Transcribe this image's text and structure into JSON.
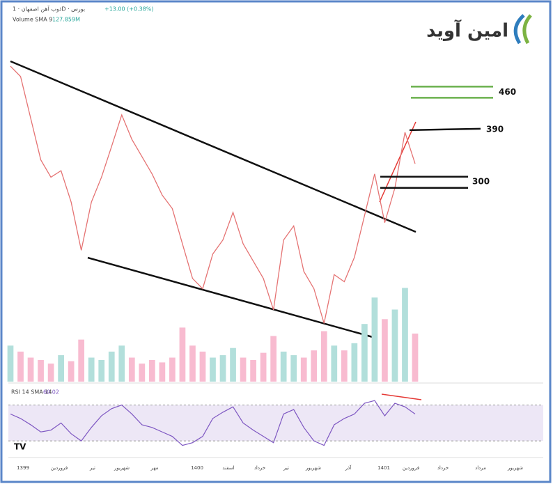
{
  "chart_data": {
    "type": "line",
    "header": {
      "symbol": "ذوب آهن اصفهان · 1D · بورس",
      "change": "+13.00 (+0.38%)"
    },
    "logo": "امین آوید",
    "price": {
      "name": "ذوب آهن اصفهان",
      "color": "#e57373",
      "ylim": [
        0,
        566
      ],
      "values": [
        508,
        489,
        412,
        335,
        303,
        315,
        257,
        168,
        257,
        303,
        360,
        418,
        373,
        341,
        309,
        270,
        245,
        180,
        116,
        97,
        161,
        187,
        238,
        180,
        148,
        116,
        58,
        187,
        213,
        129,
        97,
        33,
        123,
        110,
        155,
        232,
        309,
        219,
        283,
        386,
        328
      ]
    },
    "levels": [
      460,
      390,
      300
    ],
    "volume": {
      "label": "Volume SMA 9",
      "sma": "127.859M",
      "ylim": [
        0,
        800
      ],
      "values": [
        300,
        250,
        200,
        180,
        150,
        220,
        170,
        350,
        200,
        180,
        250,
        300,
        200,
        150,
        180,
        160,
        200,
        450,
        300,
        250,
        200,
        220,
        280,
        200,
        180,
        240,
        380,
        250,
        220,
        200,
        260,
        420,
        300,
        260,
        320,
        480,
        700,
        520,
        600,
        780,
        400
      ]
    },
    "rsi": {
      "label": "RSI 14 SMA 14",
      "last": "60.02",
      "color": "#7e57c2",
      "ylim": [
        13,
        93
      ],
      "bands": [
        70,
        30
      ],
      "values": [
        60,
        55,
        48,
        40,
        42,
        50,
        38,
        30,
        45,
        58,
        66,
        70,
        60,
        48,
        45,
        40,
        35,
        25,
        28,
        35,
        55,
        62,
        68,
        50,
        42,
        35,
        28,
        60,
        65,
        45,
        30,
        25,
        48,
        55,
        60,
        72,
        75,
        58,
        72,
        68,
        60
      ]
    },
    "x_axis_labels": [
      "1399",
      "فروردین",
      "تیر",
      "شهریور",
      "مهر",
      "1400",
      "اسفند",
      "خرداد",
      "تیر",
      "شهریور",
      "آذر",
      "1401",
      "فروردین",
      "خرداد",
      "مرداد",
      "شهریور"
    ]
  }
}
